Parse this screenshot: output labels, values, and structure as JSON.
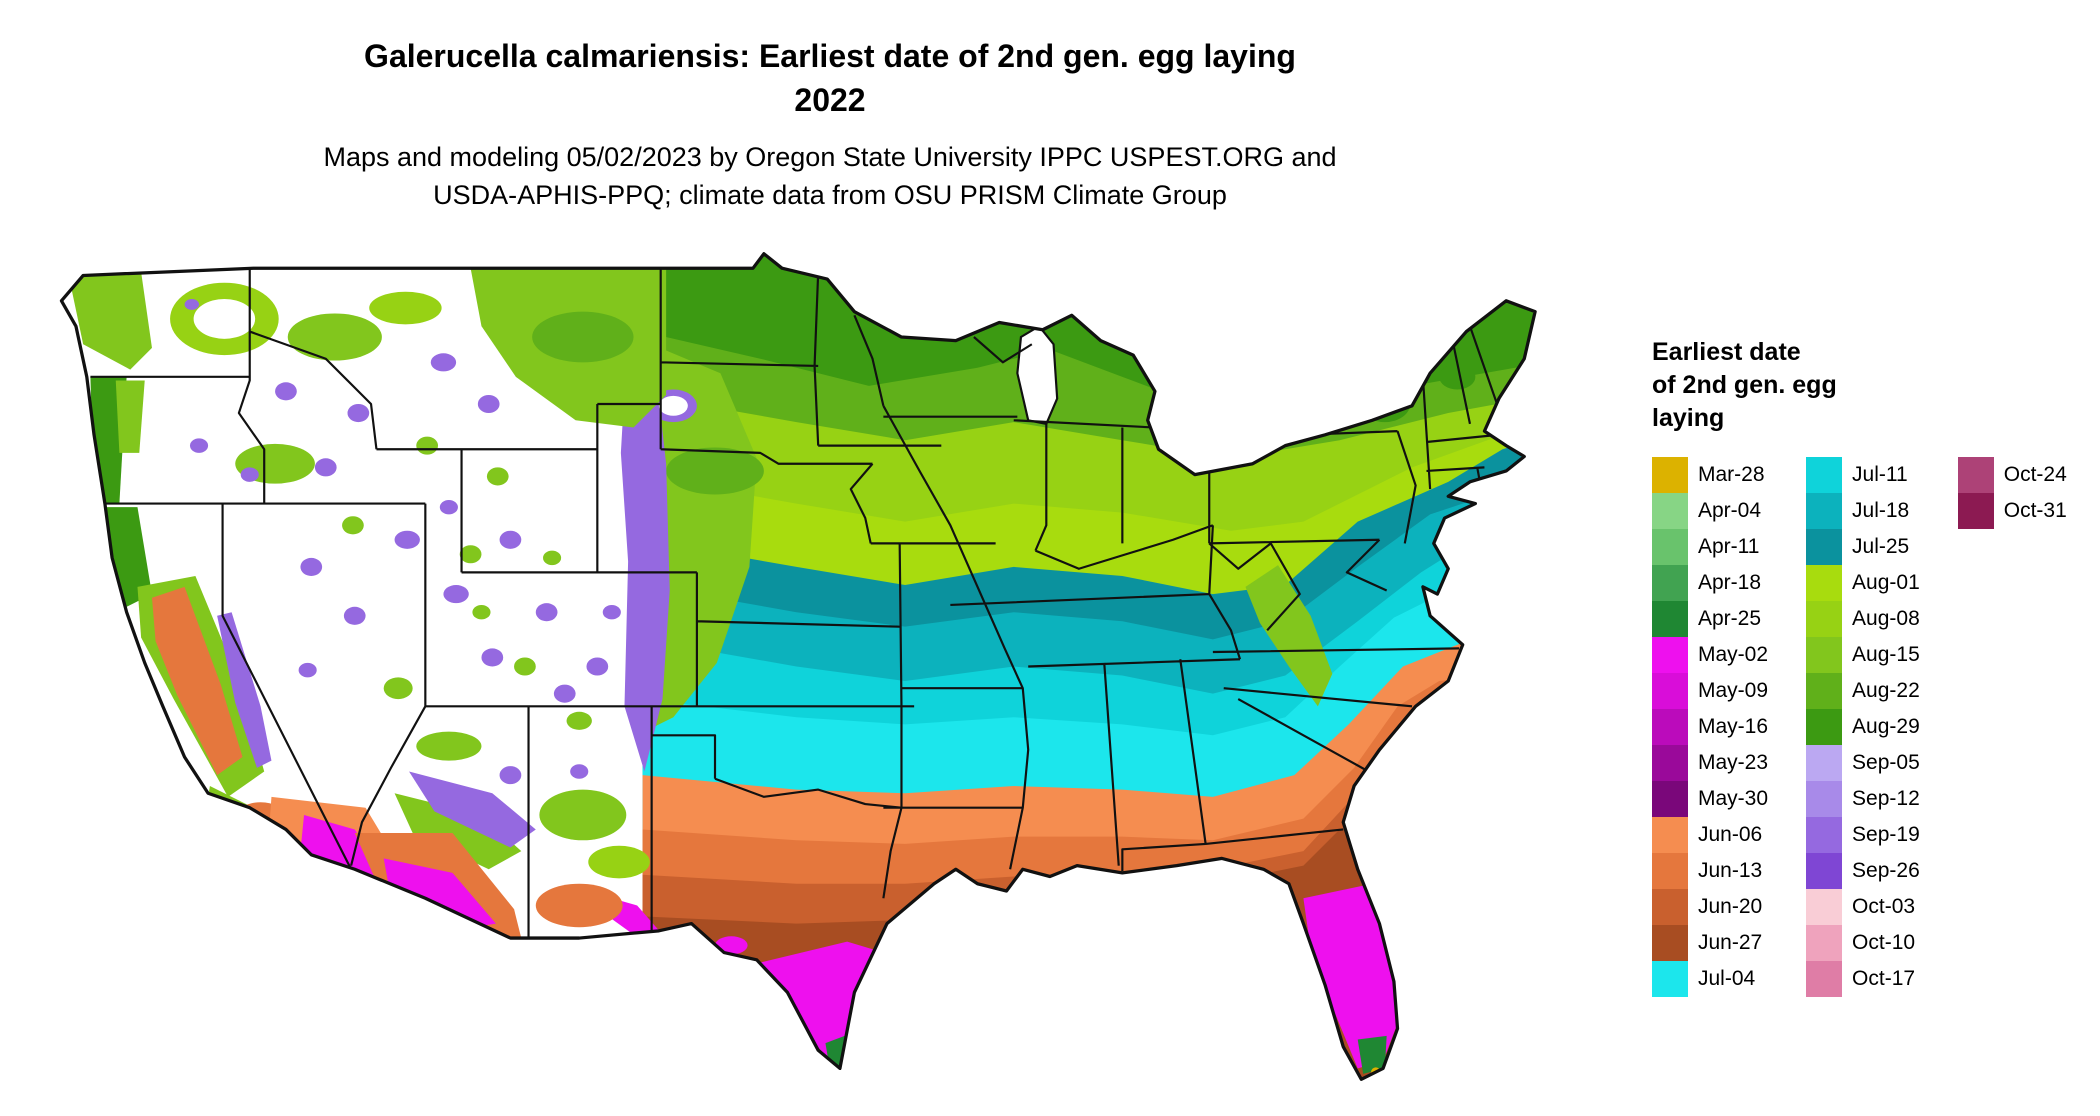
{
  "title_line1": "Galerucella calmariensis: Earliest date of 2nd gen. egg laying",
  "title_line2": "2022",
  "subtitle_line1": "Maps and modeling 05/02/2023 by Oregon State University IPPC USPEST.ORG and",
  "subtitle_line2": "USDA-APHIS-PPQ; climate data from OSU PRISM Climate Group",
  "legend": {
    "title_lines": [
      "Earliest date",
      "of 2nd gen. egg",
      "laying"
    ],
    "columns": [
      [
        {
          "label": "Mar-28",
          "color": "#dcb200"
        },
        {
          "label": "Apr-04",
          "color": "#87d585"
        },
        {
          "label": "Apr-11",
          "color": "#69c36c"
        },
        {
          "label": "Apr-18",
          "color": "#41a351"
        },
        {
          "label": "Apr-25",
          "color": "#1f8733"
        },
        {
          "label": "May-02",
          "color": "#ee10ee"
        },
        {
          "label": "May-09",
          "color": "#d90dd9"
        },
        {
          "label": "May-16",
          "color": "#bb0bbb"
        },
        {
          "label": "May-23",
          "color": "#9a099a"
        },
        {
          "label": "May-30",
          "color": "#7a077a"
        },
        {
          "label": "Jun-06",
          "color": "#f58d50"
        },
        {
          "label": "Jun-13",
          "color": "#e5773d"
        },
        {
          "label": "Jun-20",
          "color": "#c9602e"
        },
        {
          "label": "Jun-27",
          "color": "#a84d22"
        },
        {
          "label": "Jul-04",
          "color": "#1ce6ec"
        }
      ],
      [
        {
          "label": "Jul-11",
          "color": "#0fd3da"
        },
        {
          "label": "Jul-18",
          "color": "#0cb2bd"
        },
        {
          "label": "Jul-25",
          "color": "#0b929e"
        },
        {
          "label": "Aug-01",
          "color": "#a8dc0e"
        },
        {
          "label": "Aug-08",
          "color": "#97d214"
        },
        {
          "label": "Aug-15",
          "color": "#82c61d"
        },
        {
          "label": "Aug-22",
          "color": "#60b01a"
        },
        {
          "label": "Aug-29",
          "color": "#3c9a12"
        },
        {
          "label": "Sep-05",
          "color": "#bba8f2"
        },
        {
          "label": "Sep-12",
          "color": "#a88ae9"
        },
        {
          "label": "Sep-19",
          "color": "#9569e0"
        },
        {
          "label": "Sep-26",
          "color": "#7f46d4"
        },
        {
          "label": "Oct-03",
          "color": "#f9cdd6"
        },
        {
          "label": "Oct-10",
          "color": "#efa3bd"
        },
        {
          "label": "Oct-17",
          "color": "#df7da6"
        }
      ],
      [
        {
          "label": "Oct-24",
          "color": "#ad4277"
        },
        {
          "label": "Oct-31",
          "color": "#8c1a52"
        }
      ]
    ]
  },
  "map": {
    "background_color": "#ffffff",
    "no_data_color": "#ffffff",
    "border_color": "#111111"
  }
}
